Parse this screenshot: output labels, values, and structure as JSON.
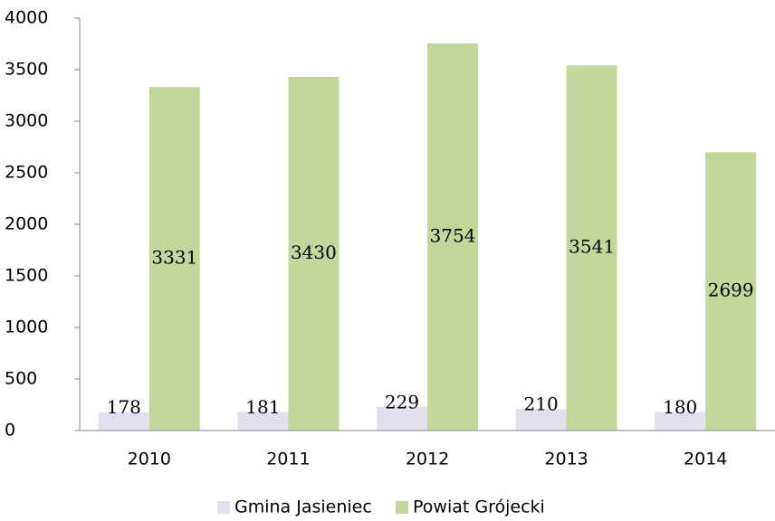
{
  "chart_data": {
    "type": "bar",
    "categories": [
      "2010",
      "2011",
      "2012",
      "2013",
      "2014"
    ],
    "series": [
      {
        "name": "Gmina Jasieniec",
        "color": "#e4dfec",
        "values": [
          178,
          181,
          229,
          210,
          180
        ]
      },
      {
        "name": "Powiat Grójecki",
        "color": "#c3d69b",
        "values": [
          3331,
          3430,
          3754,
          3541,
          2699
        ]
      }
    ],
    "ylim": [
      0,
      4000
    ],
    "yticks": [
      0,
      500,
      1000,
      1500,
      2000,
      2500,
      3000,
      3500,
      4000
    ],
    "grid": false,
    "legend": "bottom"
  }
}
